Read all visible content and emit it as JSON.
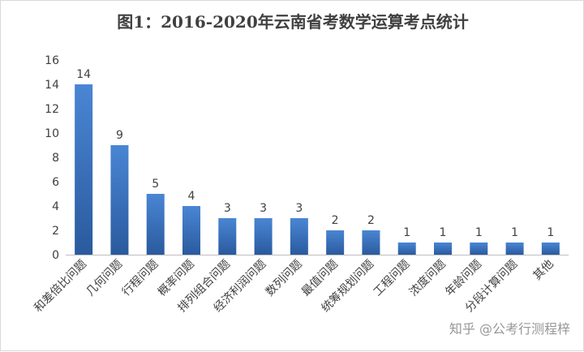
{
  "chart_data": {
    "type": "bar",
    "title": "图1：2016-2020年云南省考数学运算考点统计",
    "categories": [
      "和差倍比问题",
      "几何问题",
      "行程问题",
      "概率问题",
      "排列组合问题",
      "经济利润问题",
      "数列问题",
      "最值问题",
      "统筹规划问题",
      "工程问题",
      "浓度问题",
      "年龄问题",
      "分段计算问题",
      "其他"
    ],
    "values": [
      14,
      9,
      5,
      4,
      3,
      3,
      3,
      2,
      2,
      1,
      1,
      1,
      1,
      1
    ],
    "ylim": [
      0,
      16
    ],
    "yticks": [
      0,
      2,
      4,
      6,
      8,
      10,
      12,
      14,
      16
    ],
    "grid": false,
    "legend": "none",
    "xlabel": "",
    "ylabel": "",
    "colors": {
      "bar_top": "#4a86d4",
      "bar_bottom": "#2a5a9e",
      "axis": "#bfbfbf",
      "text": "#404040"
    }
  },
  "watermark": "知乎 @公考行测程梓"
}
